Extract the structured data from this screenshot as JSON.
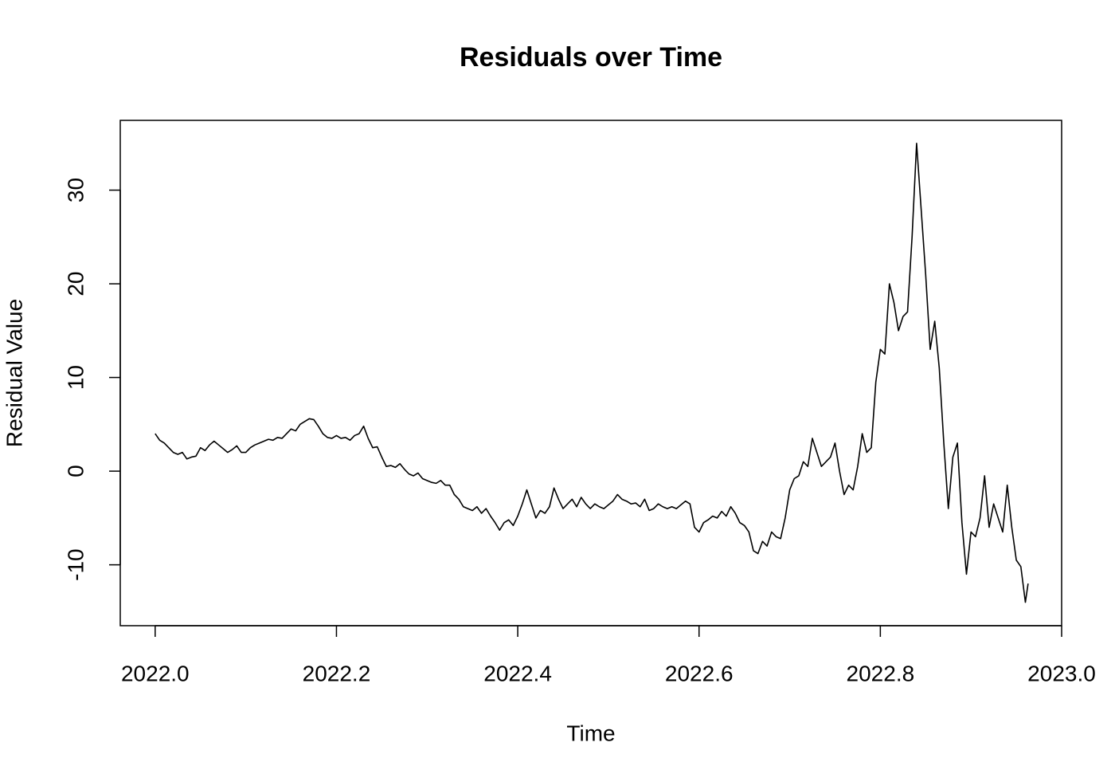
{
  "chart_data": {
    "type": "line",
    "title": "Residuals over Time",
    "xlabel": "Time",
    "ylabel": "Residual Value",
    "color": "#000000",
    "xlim": [
      2021.9615,
      2023.0
    ],
    "ylim": [
      -16.5,
      37.45
    ],
    "xticks": [
      {
        "value": 2022,
        "label": "2022.0"
      },
      {
        "value": 2022.2,
        "label": "2022.2"
      },
      {
        "value": 2022.4,
        "label": "2022.4"
      },
      {
        "value": 2022.6,
        "label": "2022.6"
      },
      {
        "value": 2022.8,
        "label": "2022.8"
      },
      {
        "value": 2023,
        "label": "2023.0"
      }
    ],
    "yticks": [
      -10,
      0,
      10,
      20,
      30
    ],
    "x": [
      2022,
      2022.005,
      2022.01,
      2022.015,
      2022.02,
      2022.025,
      2022.03,
      2022.035,
      2022.04,
      2022.045,
      2022.05,
      2022.055,
      2022.06,
      2022.065,
      2022.07,
      2022.075,
      2022.08,
      2022.085,
      2022.09,
      2022.095,
      2022.1,
      2022.105,
      2022.11,
      2022.115,
      2022.12,
      2022.125,
      2022.13,
      2022.135,
      2022.14,
      2022.145,
      2022.15,
      2022.155,
      2022.16,
      2022.165,
      2022.17,
      2022.175,
      2022.18,
      2022.185,
      2022.19,
      2022.195,
      2022.2,
      2022.205,
      2022.21,
      2022.215,
      2022.22,
      2022.225,
      2022.23,
      2022.235,
      2022.24,
      2022.245,
      2022.25,
      2022.255,
      2022.26,
      2022.265,
      2022.27,
      2022.275,
      2022.28,
      2022.285,
      2022.29,
      2022.295,
      2022.3,
      2022.305,
      2022.31,
      2022.315,
      2022.32,
      2022.325,
      2022.33,
      2022.335,
      2022.34,
      2022.345,
      2022.35,
      2022.355,
      2022.36,
      2022.365,
      2022.37,
      2022.375,
      2022.38,
      2022.385,
      2022.39,
      2022.395,
      2022.4,
      2022.405,
      2022.41,
      2022.415,
      2022.42,
      2022.425,
      2022.43,
      2022.435,
      2022.44,
      2022.445,
      2022.45,
      2022.455,
      2022.46,
      2022.465,
      2022.47,
      2022.475,
      2022.48,
      2022.485,
      2022.49,
      2022.495,
      2022.5,
      2022.505,
      2022.51,
      2022.515,
      2022.52,
      2022.525,
      2022.53,
      2022.535,
      2022.54,
      2022.545,
      2022.55,
      2022.555,
      2022.56,
      2022.565,
      2022.57,
      2022.575,
      2022.58,
      2022.585,
      2022.59,
      2022.595,
      2022.6,
      2022.605,
      2022.61,
      2022.615,
      2022.62,
      2022.625,
      2022.63,
      2022.635,
      2022.64,
      2022.645,
      2022.65,
      2022.655,
      2022.66,
      2022.665,
      2022.67,
      2022.675,
      2022.68,
      2022.685,
      2022.69,
      2022.695,
      2022.7,
      2022.705,
      2022.71,
      2022.715,
      2022.72,
      2022.725,
      2022.73,
      2022.735,
      2022.74,
      2022.745,
      2022.75,
      2022.755,
      2022.76,
      2022.765,
      2022.77,
      2022.775,
      2022.78,
      2022.785,
      2022.79,
      2022.795,
      2022.8,
      2022.805,
      2022.81,
      2022.815,
      2022.82,
      2022.825,
      2022.83,
      2022.835,
      2022.84,
      2022.845,
      2022.85,
      2022.855,
      2022.86,
      2022.865,
      2022.87,
      2022.875,
      2022.88,
      2022.885,
      2022.89,
      2022.895,
      2022.9,
      2022.905,
      2022.91,
      2022.915,
      2022.92,
      2022.925,
      2022.93,
      2022.935,
      2022.94,
      2022.945,
      2022.95,
      2022.955,
      2022.96,
      2022.963
    ],
    "values": [
      4.0,
      3.3,
      3.0,
      2.5,
      2.0,
      1.8,
      2.0,
      1.3,
      1.5,
      1.6,
      2.5,
      2.2,
      2.8,
      3.2,
      2.8,
      2.4,
      2.0,
      2.3,
      2.7,
      2.0,
      2.0,
      2.5,
      2.8,
      3.0,
      3.2,
      3.4,
      3.3,
      3.6,
      3.5,
      4.0,
      4.5,
      4.3,
      5.0,
      5.3,
      5.6,
      5.5,
      4.8,
      4.0,
      3.6,
      3.5,
      3.8,
      3.5,
      3.6,
      3.3,
      3.8,
      4.0,
      4.8,
      3.5,
      2.5,
      2.6,
      1.5,
      0.5,
      0.6,
      0.4,
      0.8,
      0.2,
      -0.3,
      -0.5,
      -0.2,
      -0.8,
      -1.0,
      -1.2,
      -1.3,
      -1.0,
      -1.5,
      -1.5,
      -2.5,
      -3.0,
      -3.8,
      -4.0,
      -4.2,
      -3.8,
      -4.5,
      -4.0,
      -4.8,
      -5.5,
      -6.3,
      -5.5,
      -5.2,
      -5.8,
      -4.8,
      -3.5,
      -2.0,
      -3.5,
      -5.0,
      -4.2,
      -4.5,
      -3.8,
      -1.8,
      -3.0,
      -4.0,
      -3.5,
      -3.0,
      -3.8,
      -2.8,
      -3.5,
      -4.0,
      -3.5,
      -3.8,
      -4.0,
      -3.6,
      -3.2,
      -2.5,
      -3.0,
      -3.2,
      -3.5,
      -3.4,
      -3.8,
      -3.0,
      -4.2,
      -4.0,
      -3.5,
      -3.8,
      -4.0,
      -3.8,
      -4.0,
      -3.6,
      -3.2,
      -3.5,
      -6.0,
      -6.5,
      -5.5,
      -5.2,
      -4.8,
      -5.0,
      -4.3,
      -4.8,
      -3.8,
      -4.5,
      -5.5,
      -5.8,
      -6.5,
      -8.5,
      -8.8,
      -7.5,
      -8.0,
      -6.5,
      -7.0,
      -7.2,
      -5.0,
      -2.0,
      -0.8,
      -0.5,
      1.0,
      0.5,
      3.5,
      2.0,
      0.5,
      1.0,
      1.5,
      3.0,
      0.0,
      -2.5,
      -1.5,
      -2.0,
      0.5,
      4.0,
      2.0,
      2.5,
      9.5,
      13.0,
      12.5,
      20.0,
      18.0,
      15.0,
      16.5,
      17.0,
      25.0,
      35.0,
      28.0,
      21.0,
      13.0,
      16.0,
      11.0,
      3.0,
      -4.0,
      1.5,
      3.0,
      -5.5,
      -11.0,
      -6.5,
      -7.0,
      -5.0,
      -0.5,
      -6.0,
      -3.5,
      -5.0,
      -6.5,
      -1.5,
      -6.0,
      -9.5,
      -10.2,
      -14.0,
      -12.0
    ]
  }
}
